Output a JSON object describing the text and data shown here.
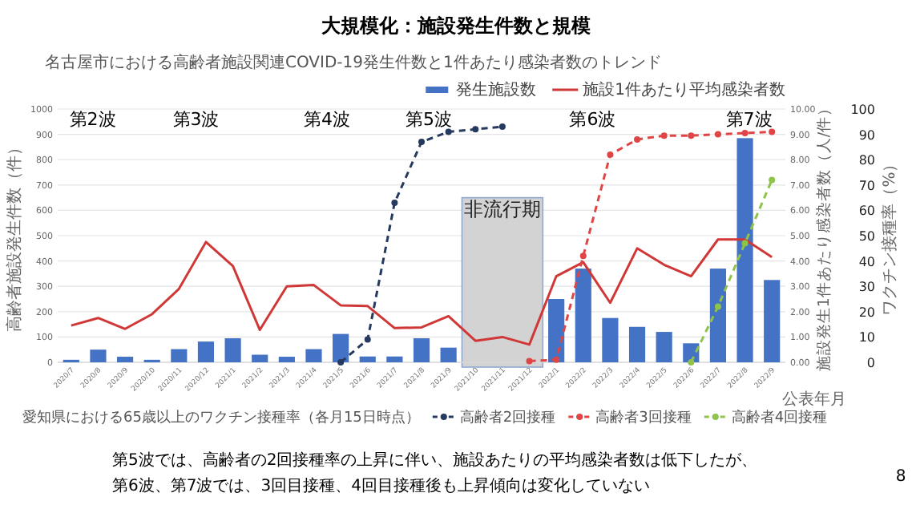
{
  "chart_data": {
    "type": "bar",
    "title": "大規模化：施設発生件数と規模",
    "subtitle": "名古屋市における高齢者施設関連COVID-19発生件数と1件あたり感染者数のトレンド",
    "xlabel": "公表年月",
    "ylabel": "高齢者施設発生件数（件）",
    "y2label": "施設発生1件あたり感染者数（人/件）",
    "y3label": "ワクチン接種率（%）",
    "legend_title": "愛知県における65歳以上のワクチン接種率（各月15日時点）",
    "legend": "right",
    "grid": "y",
    "categories": [
      "2020/7",
      "2020/8",
      "2020/9",
      "2020/10",
      "2020/11",
      "2020/12",
      "2021/1",
      "2021/2",
      "2021/3",
      "2021/4",
      "2021/5",
      "2021/6",
      "2021/7",
      "2021/8",
      "2021/9",
      "2021/10",
      "2021/11",
      "2021/12",
      "2022/1",
      "2022/2",
      "2022/3",
      "2022/4",
      "2022/5",
      "2022/6",
      "2022/7",
      "2022/8",
      "2022/9"
    ],
    "series": [
      {
        "name": "発生施設数",
        "color": "#4472c4",
        "values": [
          10,
          50,
          22,
          10,
          52,
          82,
          95,
          30,
          22,
          52,
          112,
          23,
          23,
          95,
          58,
          0,
          0,
          0,
          250,
          370,
          175,
          140,
          120,
          75,
          370,
          885,
          325
        ]
      },
      {
        "name": "施設1件あたり平均感染者数",
        "type": "line",
        "axis": "y2",
        "color": "#d03838",
        "values": [
          1.45,
          1.75,
          1.32,
          1.9,
          2.9,
          4.75,
          3.8,
          1.28,
          3.0,
          3.05,
          2.25,
          2.22,
          1.35,
          1.38,
          1.82,
          0.85,
          1.0,
          0.7,
          3.4,
          3.95,
          2.35,
          4.5,
          3.85,
          3.4,
          4.85,
          4.85,
          4.15
        ]
      },
      {
        "name": "高齢者2回接種",
        "type": "line",
        "axis": "y3",
        "color": "#26395e",
        "line_style": "dashed",
        "marker": "circle",
        "values": [
          null,
          null,
          null,
          null,
          null,
          null,
          null,
          null,
          null,
          null,
          0,
          9,
          63,
          87,
          91,
          92,
          93,
          null,
          null,
          null,
          null,
          null,
          null,
          null,
          null,
          null,
          null
        ]
      },
      {
        "name": "高齢者3回接種",
        "type": "line",
        "axis": "y3",
        "color": "#e04545",
        "line_style": "dashed",
        "marker": "circle",
        "values": [
          null,
          null,
          null,
          null,
          null,
          null,
          null,
          null,
          null,
          null,
          null,
          null,
          null,
          null,
          null,
          null,
          null,
          0.5,
          1,
          42,
          82,
          88,
          89.5,
          89.5,
          90,
          90.5,
          91
        ]
      },
      {
        "name": "高齢者4回接種",
        "type": "line",
        "axis": "y3",
        "color": "#8fc34a",
        "line_style": "dashed",
        "marker": "circle",
        "values": [
          null,
          null,
          null,
          null,
          null,
          null,
          null,
          null,
          null,
          null,
          null,
          null,
          null,
          null,
          null,
          null,
          null,
          null,
          null,
          null,
          null,
          null,
          null,
          0,
          22,
          47,
          72
        ]
      }
    ],
    "ylim": [
      0,
      1000
    ],
    "yticks": [
      0,
      100,
      200,
      300,
      400,
      500,
      600,
      700,
      800,
      900,
      1000
    ],
    "y2lim": [
      0,
      10
    ],
    "y2ticks": [
      {
        "value": 0,
        "label": "0.00"
      },
      {
        "value": 1,
        "label": "1.00"
      },
      {
        "value": 2,
        "label": "2.00"
      },
      {
        "value": 3,
        "label": "3.00"
      },
      {
        "value": 4,
        "label": "4.00"
      },
      {
        "value": 5,
        "label": "5.00"
      },
      {
        "value": 6,
        "label": "6.00"
      },
      {
        "value": 7,
        "label": "7.00"
      },
      {
        "value": 8,
        "label": "8.00"
      },
      {
        "value": 9,
        "label": "9.00"
      },
      {
        "value": 10,
        "label": "10.00"
      }
    ],
    "y3lim": [
      0,
      100
    ],
    "y3ticks": [
      0,
      10,
      20,
      30,
      40,
      50,
      60,
      70,
      80,
      90,
      100
    ],
    "bands": [
      {
        "axis": "x",
        "from": "2021/10",
        "to": "2021/12",
        "label": "非流行期",
        "color": "#d3d3d3"
      }
    ],
    "annotations": [
      "第2波",
      "第3波",
      "第4波",
      "第5波",
      "第6波",
      "第7波",
      "第5波では、高齢者の2回接種率の上昇に伴い、施設あたりの平均感染者数は低下したが、",
      "第6波、第7波では、3回目接種、4回目接種後も上昇傾向は変化していない",
      "8"
    ]
  }
}
